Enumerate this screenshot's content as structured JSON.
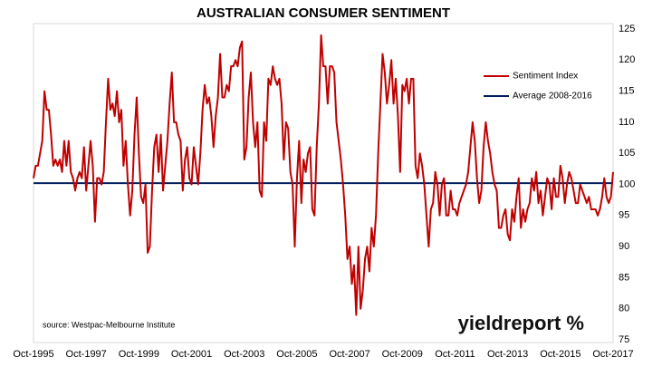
{
  "chart_data": {
    "type": "line",
    "title": "AUSTRALIAN CONSUMER SENTIMENT",
    "source": "source: Westpac-Melbourne Institute",
    "logo": "yieldreport %",
    "categories": [
      "Oct-1995",
      null,
      null,
      null,
      null,
      null,
      null,
      null,
      null,
      null,
      null,
      null,
      null,
      null,
      null,
      null,
      null,
      null,
      null,
      null,
      null,
      null,
      null,
      null,
      "Oct-1997",
      null,
      null,
      null,
      null,
      null,
      null,
      null,
      null,
      null,
      null,
      null,
      null,
      null,
      null,
      null,
      null,
      null,
      null,
      null,
      null,
      null,
      null,
      null,
      "Oct-1999",
      null,
      null,
      null,
      null,
      null,
      null,
      null,
      null,
      null,
      null,
      null,
      null,
      null,
      null,
      null,
      null,
      null,
      null,
      null,
      null,
      null,
      null,
      null,
      "Oct-2001",
      null,
      null,
      null,
      null,
      null,
      null,
      null,
      null,
      null,
      null,
      null,
      null,
      null,
      null,
      null,
      null,
      null,
      null,
      null,
      null,
      null,
      null,
      null,
      "Oct-2003",
      null,
      null,
      null,
      null,
      null,
      null,
      null,
      null,
      null,
      null,
      null,
      null,
      null,
      null,
      null,
      null,
      null,
      null,
      null,
      null,
      null,
      null,
      null,
      "Oct-2005",
      null,
      null,
      null,
      null,
      null,
      null,
      null,
      null,
      null,
      null,
      null,
      null,
      null,
      null,
      null,
      null,
      null,
      null,
      null,
      null,
      null,
      null,
      null,
      "Oct-2007",
      null,
      null,
      null,
      null,
      null,
      null,
      null,
      null,
      null,
      null,
      null,
      null,
      null,
      null,
      null,
      null,
      null,
      null,
      null,
      null,
      null,
      null,
      null,
      "Oct-2009",
      null,
      null,
      null,
      null,
      null,
      null,
      null,
      null,
      null,
      null,
      null,
      null,
      null,
      null,
      null,
      null,
      null,
      null,
      null,
      null,
      null,
      null,
      null,
      "Oct-2011",
      null,
      null,
      null,
      null,
      null,
      null,
      null,
      null,
      null,
      null,
      null,
      null,
      null,
      null,
      null,
      null,
      null,
      null,
      null,
      null,
      null,
      null,
      null,
      "Oct-2013",
      null,
      null,
      null,
      null,
      null,
      null,
      null,
      null,
      null,
      null,
      null,
      null,
      null,
      null,
      null,
      null,
      null,
      null,
      null,
      null,
      null,
      null,
      null,
      "Oct-2015",
      null,
      null,
      null,
      null,
      null,
      null,
      null,
      null,
      null,
      null,
      null,
      null,
      null,
      null,
      null,
      null,
      null,
      null,
      null,
      null,
      null,
      null,
      null,
      "Oct-2017"
    ],
    "series": [
      {
        "name": "Sentiment Index",
        "color": "#c00000",
        "values": [
          101,
          103,
          103,
          105,
          107,
          115,
          112,
          112,
          108,
          103,
          104,
          103,
          104,
          102,
          107,
          103,
          107,
          102,
          101,
          99,
          101,
          102,
          101,
          106,
          99,
          103,
          107,
          103,
          94,
          101,
          101,
          100,
          102,
          110,
          117,
          112,
          113,
          111,
          115,
          110,
          112,
          103,
          107,
          100,
          95,
          99,
          108,
          114,
          105,
          98,
          97,
          100,
          89,
          90,
          99,
          106,
          108,
          102,
          108,
          99,
          103,
          107,
          113,
          118,
          110,
          110,
          108,
          107,
          99,
          104,
          106,
          101,
          100,
          106,
          103,
          100,
          105,
          112,
          116,
          113,
          114,
          111,
          106,
          111,
          114,
          121,
          114,
          114,
          116,
          115,
          119,
          119,
          120,
          119,
          122,
          123,
          104,
          106,
          114,
          118,
          110,
          106,
          110,
          99,
          98,
          110,
          107,
          117,
          116,
          119,
          117,
          116,
          117,
          113,
          104,
          110,
          109,
          102,
          100,
          90,
          101,
          107,
          97,
          104,
          102,
          105,
          106,
          96,
          95,
          106,
          113,
          124,
          119,
          119,
          113,
          119,
          119,
          118,
          110,
          107,
          104,
          100,
          95,
          88,
          90,
          84,
          87,
          79,
          90,
          80,
          83,
          88,
          90,
          86,
          93,
          90,
          95,
          105,
          113,
          121,
          118,
          113,
          116,
          120,
          113,
          117,
          111,
          102,
          116,
          115,
          117,
          113,
          117,
          117,
          103,
          101,
          105,
          103,
          100,
          95,
          90,
          96,
          97,
          102,
          100,
          95,
          100,
          101,
          95,
          95,
          99,
          96,
          96,
          95,
          97,
          98,
          99,
          100,
          102,
          106,
          110,
          107,
          101,
          97,
          99,
          106,
          110,
          107,
          105,
          102,
          100,
          99,
          93,
          93,
          95,
          96,
          92,
          91,
          96,
          94,
          98,
          101,
          93,
          96,
          94,
          96,
          97,
          101,
          99,
          102,
          97,
          99,
          95,
          98,
          101,
          100,
          96,
          101,
          98,
          98,
          103,
          101,
          97,
          100,
          102,
          101,
          99,
          97,
          97,
          100,
          99,
          98,
          97,
          98,
          96,
          96,
          96,
          95,
          96,
          98,
          101,
          98,
          97,
          98,
          102
        ]
      }
    ],
    "reference_lines": [
      {
        "name": "Average 2008-2016",
        "color": "#002060",
        "value": 100.2
      }
    ],
    "ylim": [
      75,
      125
    ],
    "yticks": [
      75,
      80,
      85,
      90,
      95,
      100,
      105,
      110,
      115,
      120,
      125
    ],
    "y_axis_side": "right",
    "grid": false,
    "legend": "upper-right"
  }
}
